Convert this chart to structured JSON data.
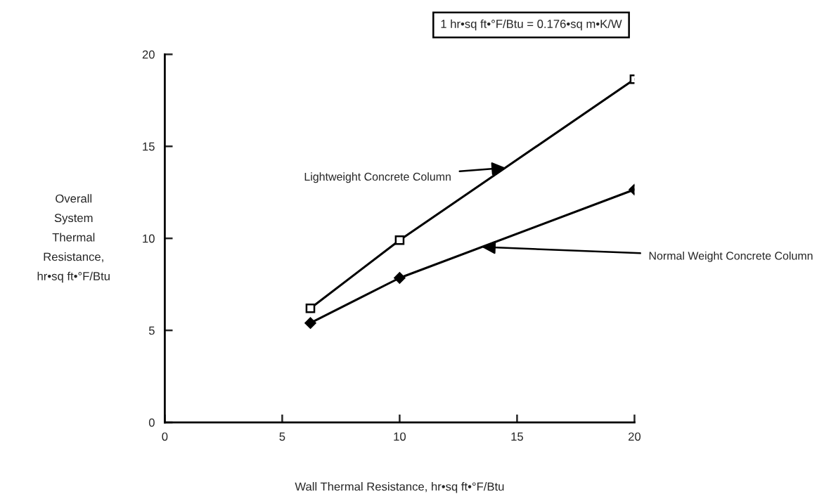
{
  "chart_data": {
    "type": "line",
    "xlabel": "Wall Thermal Resistance, hr•sq ft•°F/Btu",
    "ylabel": "Overall\nSystem\nThermal\nResistance,\nhr•sq ft•°F/Btu",
    "x": [
      6.2,
      10,
      20
    ],
    "series": [
      {
        "name": "Lightweight Concrete Column",
        "color": "#000000",
        "marker": "square",
        "values": [
          6.2,
          9.9,
          18.65
        ]
      },
      {
        "name": "Normal Weight Concrete Column",
        "color": "#000000",
        "marker": "diamond",
        "values": [
          5.4,
          7.85,
          12.65
        ]
      }
    ],
    "annotations": [
      "1 hr•sq ft•°F/Btu = 0.176•sq m•K/W"
    ],
    "xlim": [
      0,
      20
    ],
    "ylim": [
      0,
      20
    ],
    "xticks": [
      0,
      5,
      10,
      15,
      20
    ],
    "yticks": [
      0,
      5,
      10,
      15,
      20
    ],
    "grid": false,
    "legend": false,
    "line_style": "solid"
  }
}
